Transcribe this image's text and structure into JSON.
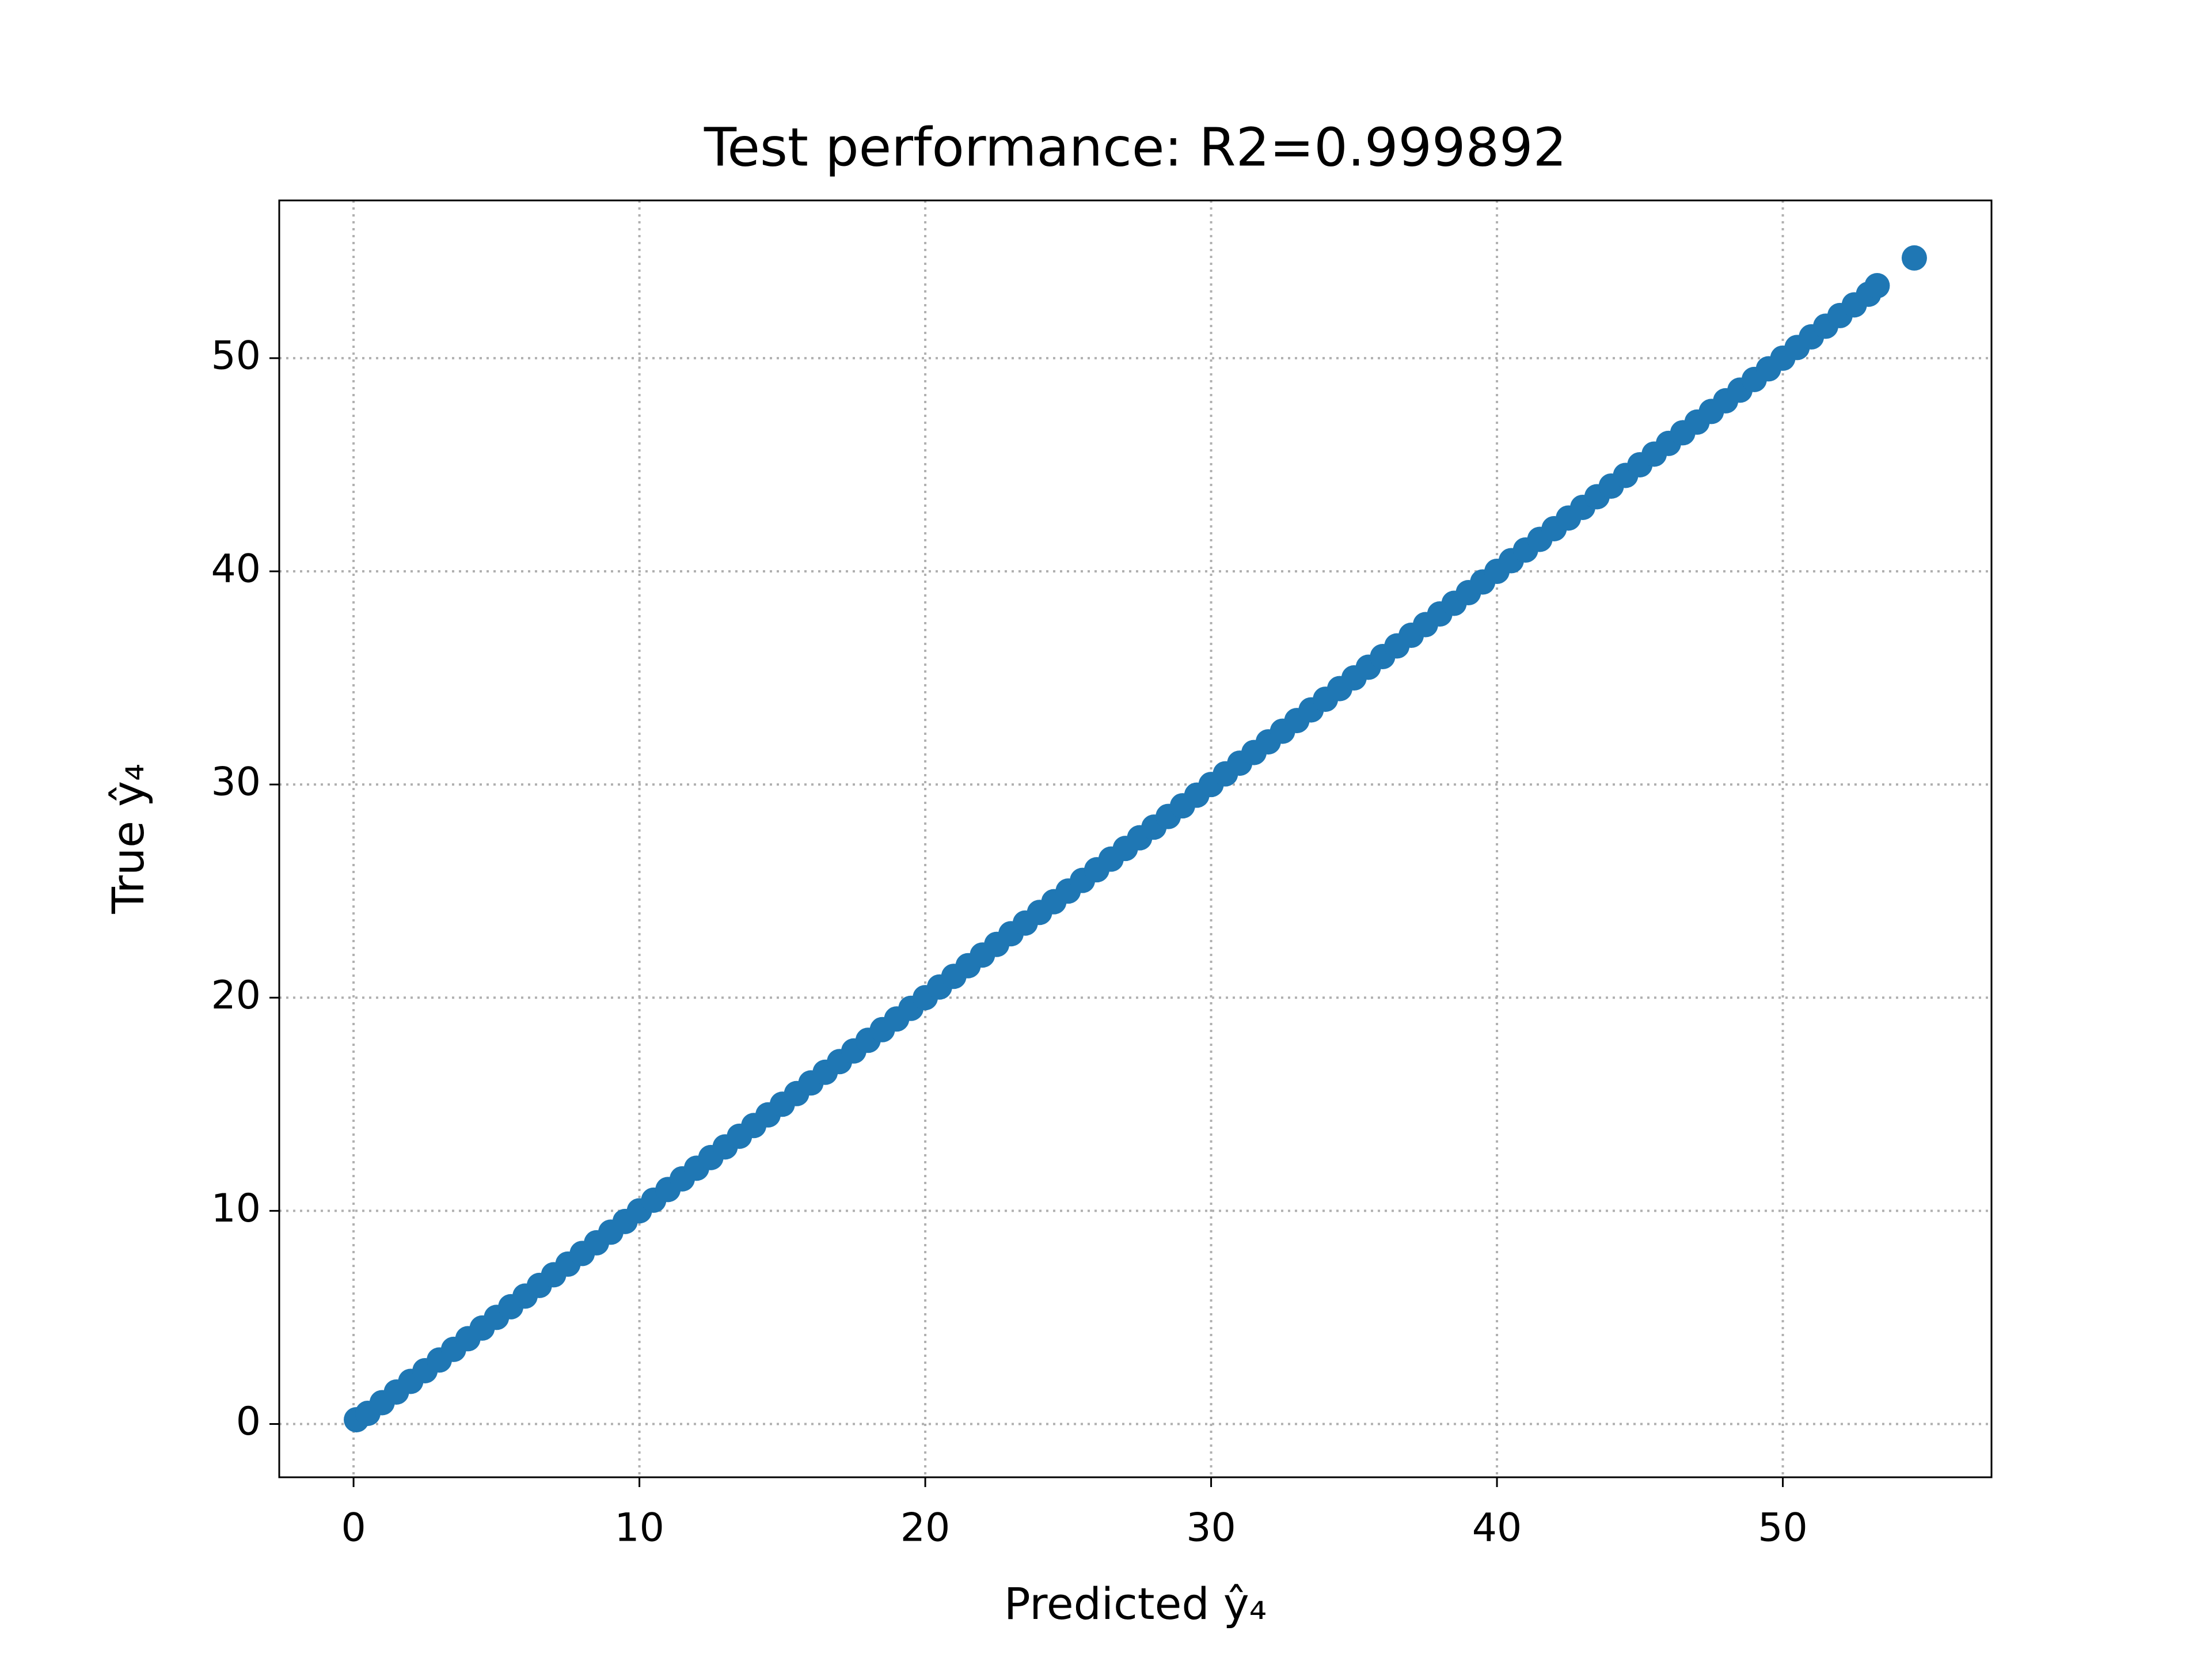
{
  "chart_data": {
    "type": "scatter",
    "title": "Test performance: R2=0.999892",
    "x_label": "Predicted ŷ₄",
    "y_label": "True ŷ₄",
    "color": "#1f77b4",
    "grid": true,
    "xlim": [
      -2.6,
      57.3
    ],
    "ylim": [
      -2.5,
      57.4
    ],
    "xticks": [
      0,
      10,
      20,
      30,
      40,
      50
    ],
    "yticks": [
      0,
      10,
      20,
      30,
      40,
      50
    ],
    "x": [
      0.1,
      0.5,
      1,
      1.5,
      2,
      2.5,
      3,
      3.5,
      4,
      4.5,
      5,
      5.5,
      6,
      6.5,
      7,
      7.5,
      8,
      8.5,
      9,
      9.5,
      10,
      10.5,
      11,
      11.5,
      12,
      12.5,
      13,
      13.5,
      14,
      14.5,
      15,
      15.5,
      16,
      16.5,
      17,
      17.5,
      18,
      18.5,
      19,
      19.5,
      20,
      20.5,
      21,
      21.5,
      22,
      22.5,
      23,
      23.5,
      24,
      24.5,
      25,
      25.5,
      26,
      26.5,
      27,
      27.5,
      28,
      28.5,
      29,
      29.5,
      30,
      30.5,
      31,
      31.5,
      32,
      32.5,
      33,
      33.5,
      34,
      34.5,
      35,
      35.5,
      36,
      36.5,
      37,
      37.5,
      38,
      38.5,
      39,
      39.5,
      40,
      40.5,
      41,
      41.5,
      42,
      42.5,
      43,
      43.5,
      44,
      44.5,
      45,
      45.5,
      46,
      46.5,
      47,
      47.5,
      48,
      48.5,
      49,
      49.5,
      50,
      50.5,
      51,
      51.5,
      52,
      52.5,
      53,
      53.3,
      54.6
    ],
    "values": [
      0.2,
      0.5,
      1,
      1.5,
      2,
      2.5,
      3,
      3.5,
      4,
      4.5,
      5,
      5.5,
      6,
      6.5,
      7,
      7.5,
      8,
      8.5,
      9,
      9.5,
      10,
      10.5,
      11,
      11.5,
      12,
      12.5,
      13,
      13.5,
      14,
      14.5,
      15,
      15.5,
      16,
      16.5,
      17,
      17.5,
      18,
      18.5,
      19,
      19.5,
      20,
      20.5,
      21,
      21.5,
      22,
      22.5,
      23,
      23.5,
      24,
      24.5,
      25,
      25.5,
      26,
      26.5,
      27,
      27.5,
      28,
      28.5,
      29,
      29.5,
      30,
      30.5,
      31,
      31.5,
      32,
      32.5,
      33,
      33.5,
      34,
      34.5,
      35,
      35.5,
      36,
      36.5,
      37,
      37.5,
      38,
      38.5,
      39,
      39.5,
      40,
      40.5,
      41,
      41.5,
      42,
      42.5,
      43,
      43.5,
      44,
      44.5,
      45,
      45.5,
      46,
      46.5,
      47,
      47.5,
      48,
      48.5,
      49,
      49.5,
      50,
      50.5,
      51,
      51.5,
      52,
      52.5,
      53,
      53.4,
      54.7
    ]
  }
}
